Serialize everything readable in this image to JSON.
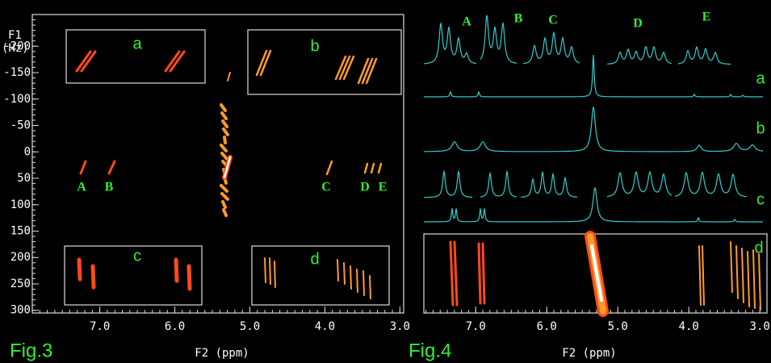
{
  "fig3": {
    "label": "Fig.3",
    "x_axis_label": "F2 (ppm)",
    "y_axis_label_1": "F1",
    "y_axis_label_2": "(Hz)",
    "xlim": [
      7.9,
      2.95
    ],
    "xticks": [
      {
        "value": 7,
        "label": "7.0"
      },
      {
        "value": 6,
        "label": "6.0"
      },
      {
        "value": 5,
        "label": "5.0"
      },
      {
        "value": 4,
        "label": "4.0"
      },
      {
        "value": 3,
        "label": "3.0"
      }
    ],
    "ylim": [
      -260,
      305
    ],
    "yticks": [
      -200,
      -150,
      -100,
      -50,
      0,
      50,
      100,
      150,
      200,
      250,
      300
    ],
    "insets": [
      "a",
      "b",
      "c",
      "d"
    ],
    "peaks": [
      "A",
      "B",
      "C",
      "D",
      "E"
    ]
  },
  "fig4": {
    "label": "Fig.4",
    "x_axis_label": "F2 (ppm)",
    "xlim": [
      7.73,
      2.9
    ],
    "xticks": [
      {
        "value": 7,
        "label": "7.0"
      },
      {
        "value": 6,
        "label": "6.0"
      },
      {
        "value": 5,
        "label": "5.0"
      },
      {
        "value": 4,
        "label": "4.0"
      },
      {
        "value": 3,
        "label": "3.0"
      }
    ],
    "traces": [
      "a",
      "b",
      "c",
      "d"
    ],
    "multiplets": [
      "A",
      "B",
      "C",
      "D",
      "E"
    ]
  }
}
